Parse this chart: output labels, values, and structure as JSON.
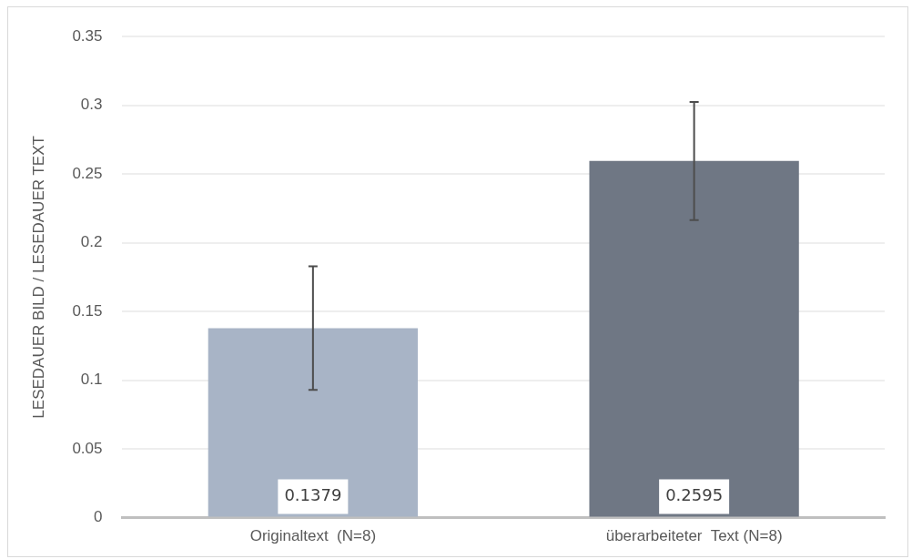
{
  "chart_data": {
    "type": "bar",
    "ylabel": "LESEDAUER BILD / LESEDAUER TEXT",
    "categories": [
      "Originaltext  (N=8)",
      "überarbeiteter  Text (N=8)"
    ],
    "values": [
      0.1379,
      0.2595
    ],
    "colors": [
      "#a8b4c6",
      "#6f7784"
    ],
    "errors": [
      0.045,
      0.043
    ],
    "ylim": [
      0,
      0.35
    ],
    "yticks": [
      0,
      0.05,
      0.1,
      0.15,
      0.2,
      0.25,
      0.3,
      0.35
    ],
    "grid": "y",
    "data_labels": true,
    "legend": false
  }
}
